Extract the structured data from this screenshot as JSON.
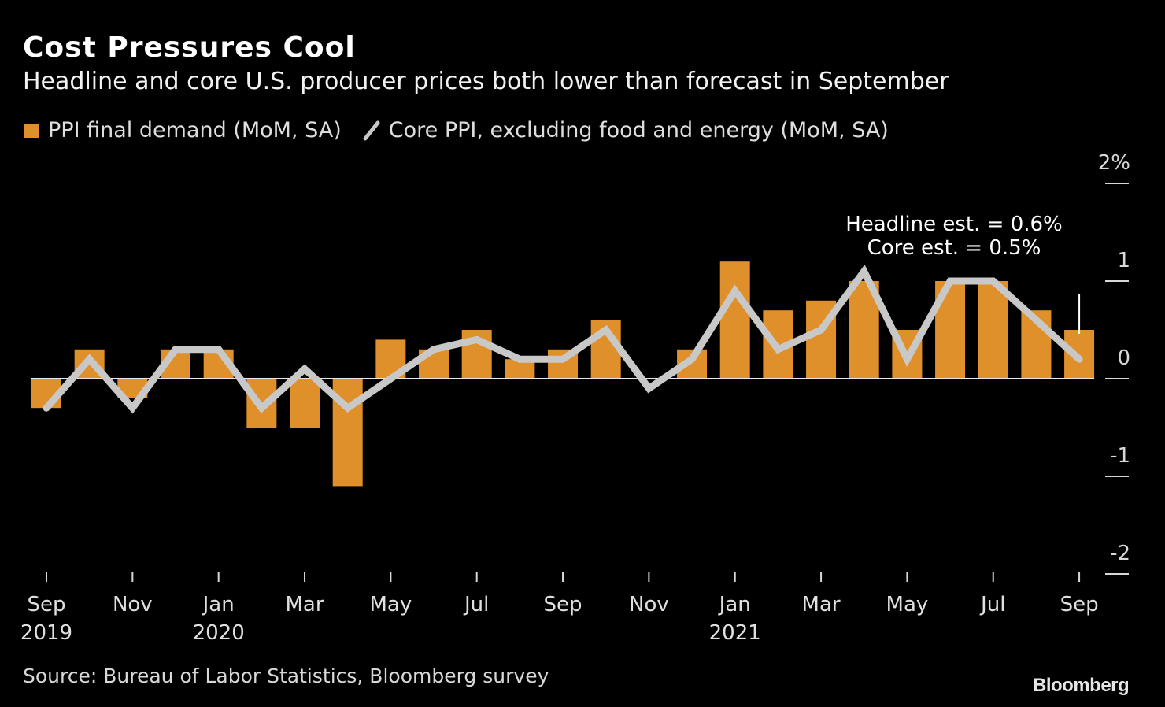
{
  "chart_data": {
    "type": "bar",
    "title": "Cost Pressures Cool",
    "subtitle": "Headline and core U.S. producer prices both lower than forecast in September",
    "xlabel": "",
    "ylabel": "",
    "ylim": [
      -2,
      2
    ],
    "yticks": [
      2,
      1,
      0,
      -1,
      -2
    ],
    "ytick_labels": [
      "2%",
      "1",
      "0",
      "-1",
      "-2"
    ],
    "grid": false,
    "legend_position": "top-left",
    "x": [
      "Sep 2019",
      "Oct 2019",
      "Nov 2019",
      "Dec 2019",
      "Jan 2020",
      "Feb 2020",
      "Mar 2020",
      "Apr 2020",
      "May 2020",
      "Jun 2020",
      "Jul 2020",
      "Aug 2020",
      "Sep 2020",
      "Oct 2020",
      "Nov 2020",
      "Dec 2020",
      "Jan 2021",
      "Feb 2021",
      "Mar 2021",
      "Apr 2021",
      "May 2021",
      "Jun 2021",
      "Jul 2021",
      "Aug 2021",
      "Sep 2021"
    ],
    "xtick_labels": [
      {
        "index": 0,
        "month": "Sep",
        "year": "2019"
      },
      {
        "index": 2,
        "month": "Nov",
        "year": ""
      },
      {
        "index": 4,
        "month": "Jan",
        "year": "2020"
      },
      {
        "index": 6,
        "month": "Mar",
        "year": ""
      },
      {
        "index": 8,
        "month": "May",
        "year": ""
      },
      {
        "index": 10,
        "month": "Jul",
        "year": ""
      },
      {
        "index": 12,
        "month": "Sep",
        "year": ""
      },
      {
        "index": 14,
        "month": "Nov",
        "year": ""
      },
      {
        "index": 16,
        "month": "Jan",
        "year": "2021"
      },
      {
        "index": 18,
        "month": "Mar",
        "year": ""
      },
      {
        "index": 20,
        "month": "May",
        "year": ""
      },
      {
        "index": 22,
        "month": "Jul",
        "year": ""
      },
      {
        "index": 24,
        "month": "Sep",
        "year": ""
      }
    ],
    "series": [
      {
        "name": "PPI final demand (MoM, SA)",
        "type": "bar",
        "color": "#e0902a",
        "values": [
          -0.3,
          0.3,
          -0.2,
          0.3,
          0.3,
          -0.5,
          -0.5,
          -1.1,
          0.4,
          0.3,
          0.5,
          0.2,
          0.3,
          0.6,
          0.0,
          0.3,
          1.2,
          0.7,
          0.8,
          1.0,
          0.5,
          1.0,
          1.0,
          0.7,
          0.5
        ]
      },
      {
        "name": "Core PPI, excluding food and energy (MoM, SA)",
        "type": "line",
        "color": "#c8c8c8",
        "values": [
          -0.3,
          0.2,
          -0.3,
          0.3,
          0.3,
          -0.3,
          0.1,
          -0.3,
          0.0,
          0.3,
          0.4,
          0.2,
          0.2,
          0.5,
          -0.1,
          0.2,
          0.9,
          0.3,
          0.5,
          1.1,
          0.2,
          1.0,
          1.0,
          0.6,
          0.2
        ]
      }
    ],
    "annotations": [
      {
        "text_lines": [
          "Headline est. = 0.6%",
          "Core est. = 0.5%"
        ],
        "x_index": 24,
        "range": [
          0.5,
          0.6
        ]
      }
    ]
  },
  "legend": {
    "bar_label": "PPI final demand (MoM, SA)",
    "line_label": "Core PPI, excluding food and energy (MoM, SA)"
  },
  "annotation": {
    "line1": "Headline est. = 0.6%",
    "line2": "Core est. = 0.5%"
  },
  "footer": {
    "source": "Source: Bureau of Labor Statistics, Bloomberg survey",
    "brand": "Bloomberg"
  }
}
